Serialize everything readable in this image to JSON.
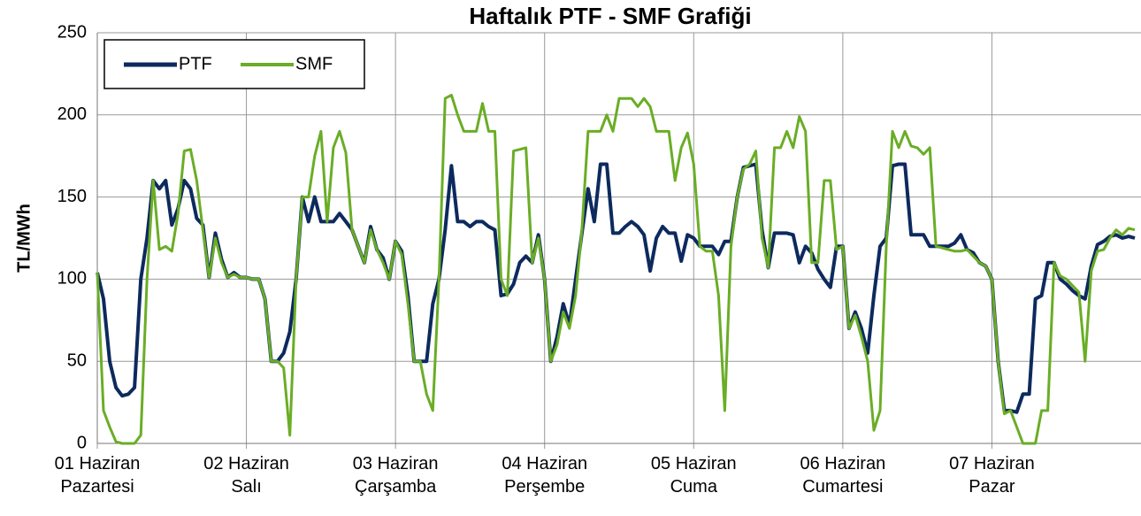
{
  "chart_data": {
    "type": "line",
    "title": "Haftalık PTF - SMF Grafiği",
    "y_label": "TL/MWh",
    "categories": [
      "01 Haziran\nPazartesi",
      null,
      null,
      null,
      null,
      null,
      null,
      null,
      null,
      null,
      null,
      null,
      null,
      null,
      null,
      null,
      null,
      null,
      null,
      null,
      null,
      null,
      null,
      null,
      "02 Haziran\nSalı",
      null,
      null,
      null,
      null,
      null,
      null,
      null,
      null,
      null,
      null,
      null,
      null,
      null,
      null,
      null,
      null,
      null,
      null,
      null,
      null,
      null,
      null,
      null,
      "03 Haziran\nÇarşamba",
      null,
      null,
      null,
      null,
      null,
      null,
      null,
      null,
      null,
      null,
      null,
      null,
      null,
      null,
      null,
      null,
      null,
      null,
      null,
      null,
      null,
      null,
      null,
      "04 Haziran\nPerşembe",
      null,
      null,
      null,
      null,
      null,
      null,
      null,
      null,
      null,
      null,
      null,
      null,
      null,
      null,
      null,
      null,
      null,
      null,
      null,
      null,
      null,
      null,
      null,
      "05 Haziran\nCuma",
      null,
      null,
      null,
      null,
      null,
      null,
      null,
      null,
      null,
      null,
      null,
      null,
      null,
      null,
      null,
      null,
      null,
      null,
      null,
      null,
      null,
      null,
      null,
      "06 Haziran\nCumartesi",
      null,
      null,
      null,
      null,
      null,
      null,
      null,
      null,
      null,
      null,
      null,
      null,
      null,
      null,
      null,
      null,
      null,
      null,
      null,
      null,
      null,
      null,
      null,
      "07 Haziran\nPazar",
      null,
      null,
      null,
      null,
      null,
      null,
      null,
      null,
      null,
      null,
      null,
      null,
      null,
      null,
      null,
      null,
      null,
      null,
      null,
      null,
      null,
      null,
      null
    ],
    "series": [
      {
        "name": "PTF",
        "color": "#0d2a5e",
        "values": [
          104,
          88,
          50,
          34,
          29,
          30,
          34,
          100,
          125,
          160,
          155,
          160,
          133,
          143,
          160,
          155,
          137,
          133,
          101,
          128,
          112,
          101,
          104,
          101,
          101,
          100,
          100,
          88,
          50,
          50,
          55,
          68,
          100,
          150,
          135,
          150,
          135,
          135,
          135,
          140,
          135,
          130,
          120,
          110,
          132,
          118,
          113,
          100,
          123,
          117,
          90,
          50,
          50,
          50,
          85,
          100,
          130,
          169,
          135,
          135,
          132,
          135,
          135,
          132,
          130,
          90,
          91,
          97,
          110,
          114,
          110,
          127,
          100,
          50,
          65,
          85,
          72,
          100,
          128,
          155,
          135,
          170,
          170,
          128,
          128,
          132,
          135,
          132,
          127,
          105,
          125,
          132,
          128,
          128,
          111,
          127,
          125,
          120,
          120,
          120,
          115,
          123,
          123,
          150,
          168,
          169,
          170,
          130,
          107,
          128,
          128,
          128,
          127,
          110,
          120,
          116,
          106,
          100,
          95,
          120,
          120,
          70,
          80,
          70,
          55,
          90,
          120,
          125,
          169,
          170,
          170,
          127,
          127,
          127,
          120,
          120,
          120,
          120,
          122,
          127,
          118,
          116,
          110,
          108,
          100,
          50,
          20,
          20,
          19,
          30,
          30,
          88,
          90,
          110,
          110,
          100,
          97,
          93,
          90,
          88,
          108,
          121,
          123,
          126,
          127,
          125,
          126,
          125
        ]
      },
      {
        "name": "SMF",
        "color": "#6aad26",
        "values": [
          104,
          20,
          10,
          1,
          0,
          0,
          0,
          5,
          100,
          160,
          118,
          120,
          117,
          140,
          178,
          179,
          160,
          130,
          101,
          125,
          110,
          101,
          103,
          101,
          101,
          100,
          100,
          88,
          50,
          50,
          46,
          5,
          100,
          150,
          150,
          175,
          190,
          135,
          180,
          190,
          177,
          130,
          120,
          110,
          130,
          118,
          110,
          100,
          123,
          115,
          85,
          50,
          50,
          30,
          20,
          100,
          210,
          212,
          200,
          190,
          190,
          190,
          207,
          190,
          190,
          100,
          90,
          178,
          179,
          180,
          110,
          125,
          100,
          50,
          60,
          80,
          70,
          90,
          130,
          190,
          190,
          190,
          200,
          190,
          210,
          210,
          210,
          205,
          210,
          205,
          190,
          190,
          190,
          160,
          180,
          189,
          170,
          120,
          117,
          117,
          90,
          20,
          120,
          150,
          167,
          170,
          178,
          125,
          107,
          180,
          180,
          190,
          180,
          199,
          190,
          110,
          110,
          160,
          160,
          118,
          120,
          70,
          78,
          65,
          50,
          8,
          20,
          120,
          190,
          180,
          190,
          181,
          180,
          176,
          180,
          120,
          119,
          118,
          117,
          117,
          118,
          114,
          110,
          108,
          100,
          50,
          18,
          20,
          10,
          0,
          0,
          0,
          20,
          20,
          110,
          102,
          100,
          96,
          92,
          50,
          105,
          117,
          118,
          125,
          130,
          127,
          131,
          130
        ]
      }
    ],
    "ylim": [
      0,
      250
    ],
    "yticks": [
      0,
      50,
      100,
      150,
      200,
      250
    ],
    "grid": true,
    "legend": "upper left"
  }
}
